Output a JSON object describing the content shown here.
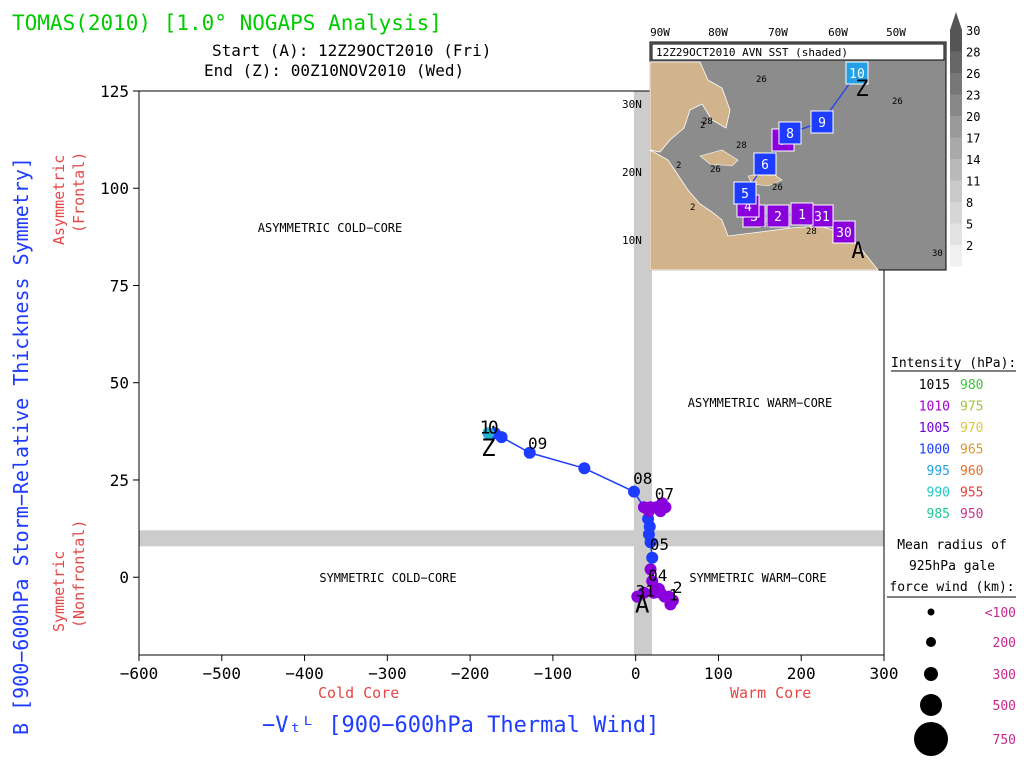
{
  "header": {
    "title": "TOMAS(2010) [1.0° NOGAPS Analysis]",
    "start": "Start (A): 12Z29OCT2010 (Fri)",
    "end": "End (Z): 00Z10NOV2010 (Wed)"
  },
  "chart_data": {
    "type": "scatter",
    "xlabel": "−Vₜᴸ [900−600hPa Thermal Wind]",
    "ylabel": "B [900−600hPa Storm−Relative Thickness Symmetry]",
    "xlim": [
      -600,
      300
    ],
    "ylim": [
      -20,
      125
    ],
    "xticks": [
      -600,
      -500,
      -400,
      -300,
      -200,
      -100,
      0,
      100,
      200,
      300
    ],
    "yticks": [
      0,
      25,
      50,
      75,
      100,
      125
    ],
    "x_side_labels": {
      "left": "Cold Core",
      "right": "Warm Core"
    },
    "y_side_labels": {
      "upper": "Asymmetric\n(Frontal)",
      "lower": "Symmetric\n(Nonfrontal)"
    },
    "quadrants": {
      "ul": "ASYMMETRIC COLD−CORE",
      "ur": "ASYMMETRIC WARM−CORE",
      "ll": "SYMMETRIC COLD−CORE",
      "lr": "SYMMETRIC WARM−CORE"
    },
    "thresholds": {
      "x": 10,
      "y": 10
    },
    "grid": false,
    "track": [
      {
        "x": 2,
        "y": -5,
        "c": "#8a00dc"
      },
      {
        "x": 10,
        "y": -4,
        "c": "#8a00dc"
      },
      {
        "x": 22,
        "y": -4,
        "c": "#8a00dc"
      },
      {
        "x": 28,
        "y": -3,
        "c": "#8a00dc"
      },
      {
        "x": 35,
        "y": -5,
        "c": "#8a00dc"
      },
      {
        "x": 42,
        "y": -7,
        "c": "#8a00dc"
      },
      {
        "x": 45,
        "y": -6,
        "c": "#8a00dc"
      },
      {
        "x": 40,
        "y": -5,
        "c": "#8a00dc"
      },
      {
        "x": 30,
        "y": -4,
        "c": "#8a00dc"
      },
      {
        "x": 20,
        "y": -1,
        "c": "#8a00dc"
      },
      {
        "x": 18,
        "y": 2,
        "c": "#8a00dc"
      },
      {
        "x": 20,
        "y": 5,
        "c": "#1e3cff"
      },
      {
        "x": 18,
        "y": 9,
        "c": "#1e3cff"
      },
      {
        "x": 16,
        "y": 11,
        "c": "#1e3cff"
      },
      {
        "x": 17,
        "y": 13,
        "c": "#1e3cff"
      },
      {
        "x": 15,
        "y": 15,
        "c": "#1e3cff"
      },
      {
        "x": 16,
        "y": 17,
        "c": "#8a00dc"
      },
      {
        "x": 18,
        "y": 18,
        "c": "#8a00dc"
      },
      {
        "x": 25,
        "y": 18,
        "c": "#8a00dc"
      },
      {
        "x": 32,
        "y": 19,
        "c": "#8a00dc"
      },
      {
        "x": 36,
        "y": 18,
        "c": "#8a00dc"
      },
      {
        "x": 30,
        "y": 17,
        "c": "#8a00dc"
      },
      {
        "x": 10,
        "y": 18,
        "c": "#8a00dc"
      },
      {
        "x": -2,
        "y": 22,
        "c": "#1e3cff"
      },
      {
        "x": -62,
        "y": 28,
        "c": "#1e3cff"
      },
      {
        "x": -128,
        "y": 32,
        "c": "#1e3cff"
      },
      {
        "x": -162,
        "y": 36,
        "c": "#1e3cff"
      },
      {
        "x": -170,
        "y": 37,
        "c": "#1e3cff"
      },
      {
        "x": -178,
        "y": 37,
        "c": "#23b4d2"
      }
    ],
    "day_labels": [
      {
        "text": "09",
        "x": -130,
        "y": 33
      },
      {
        "text": "08",
        "x": -3,
        "y": 24
      },
      {
        "text": "07",
        "x": 23,
        "y": 20
      },
      {
        "text": "05",
        "x": 17,
        "y": 7
      },
      {
        "text": "04",
        "x": 15,
        "y": -1
      },
      {
        "text": "31",
        "x": 0,
        "y": -5
      },
      {
        "text": "2",
        "x": 45,
        "y": -4
      },
      {
        "text": "1",
        "x": 40,
        "y": -6
      }
    ],
    "start_marker": {
      "text": "A",
      "x": 8,
      "y": -5
    },
    "end_marker": {
      "text": "Z",
      "x": -178,
      "y": 35
    },
    "track_extra_labels": [
      {
        "text": "1",
        "x": -182,
        "y": 37
      },
      {
        "text": "0",
        "x": -172,
        "y": 37
      }
    ]
  },
  "inset": {
    "title": "12Z29OCT2010 AVN SST (shaded)",
    "lon_labels": [
      "90W",
      "80W",
      "70W",
      "60W",
      "50W"
    ],
    "lat_labels": [
      "30N",
      "20N",
      "10N"
    ],
    "colorbar_labels": [
      "30",
      "28",
      "26",
      "23",
      "20",
      "17",
      "14",
      "11",
      "8",
      "5",
      "2"
    ],
    "colorbar_colors": [
      "#555555",
      "#666666",
      "#777777",
      "#888888",
      "#999999",
      "#a9a9a9",
      "#b9b9b9",
      "#c9c9c9",
      "#d6d6d6",
      "#e3e3e3",
      "#f0f0f0"
    ],
    "contour_labels": [
      "26",
      "26",
      "28",
      "28",
      "26",
      "26",
      "28",
      "30",
      "2",
      "2",
      "2",
      "28"
    ],
    "track_boxes": [
      {
        "text": "30",
        "c": "#8a00dc"
      },
      {
        "text": "31",
        "c": "#8a00dc"
      },
      {
        "text": "1",
        "c": "#8a00dc"
      },
      {
        "text": "2",
        "c": "#8a00dc"
      },
      {
        "text": "3",
        "c": "#8a00dc"
      },
      {
        "text": "4",
        "c": "#8a00dc"
      },
      {
        "text": "5",
        "c": "#1e3cff"
      },
      {
        "text": "6",
        "c": "#1e3cff"
      },
      {
        "text": "7",
        "c": "#8a00dc"
      },
      {
        "text": "8",
        "c": "#1e3cff"
      },
      {
        "text": "9",
        "c": "#1e3cff"
      },
      {
        "text": "10",
        "c": "#23a0e6"
      }
    ],
    "start_marker": "A",
    "end_marker": "Z"
  },
  "legend": {
    "intensity_title": "Intensity (hPa):",
    "intensity": [
      {
        "left": "1015",
        "lc": "#000000",
        "right": "980",
        "rc": "#3cc83c"
      },
      {
        "left": "1010",
        "lc": "#a000c8",
        "right": "975",
        "rc": "#a0c83c"
      },
      {
        "left": "1005",
        "lc": "#6e00dc",
        "right": "970",
        "rc": "#dcc83c"
      },
      {
        "left": "1000",
        "lc": "#1e3cff",
        "right": "965",
        "rc": "#dc9632"
      },
      {
        "left": "995",
        "lc": "#23a0e6",
        "right": "960",
        "rc": "#e66e28"
      },
      {
        "left": "990",
        "lc": "#1ec8c8",
        "right": "955",
        "rc": "#e63c3c"
      },
      {
        "left": "985",
        "lc": "#1ec896",
        "right": "950",
        "rc": "#c8328c"
      }
    ],
    "radius_title": [
      "Mean radius of",
      "925hPa gale",
      "force wind (km):"
    ],
    "radius_entries": [
      "<100",
      "200",
      "300",
      "500",
      "750"
    ],
    "radius_label_color": "#c8288c"
  },
  "colors": {
    "title": "#00cc00",
    "axis_label": "#1e3cff",
    "side_label": "#e64646",
    "threshold_band": "#cccccc",
    "land": "#d2b48c",
    "sea": "#8c8c8c"
  }
}
